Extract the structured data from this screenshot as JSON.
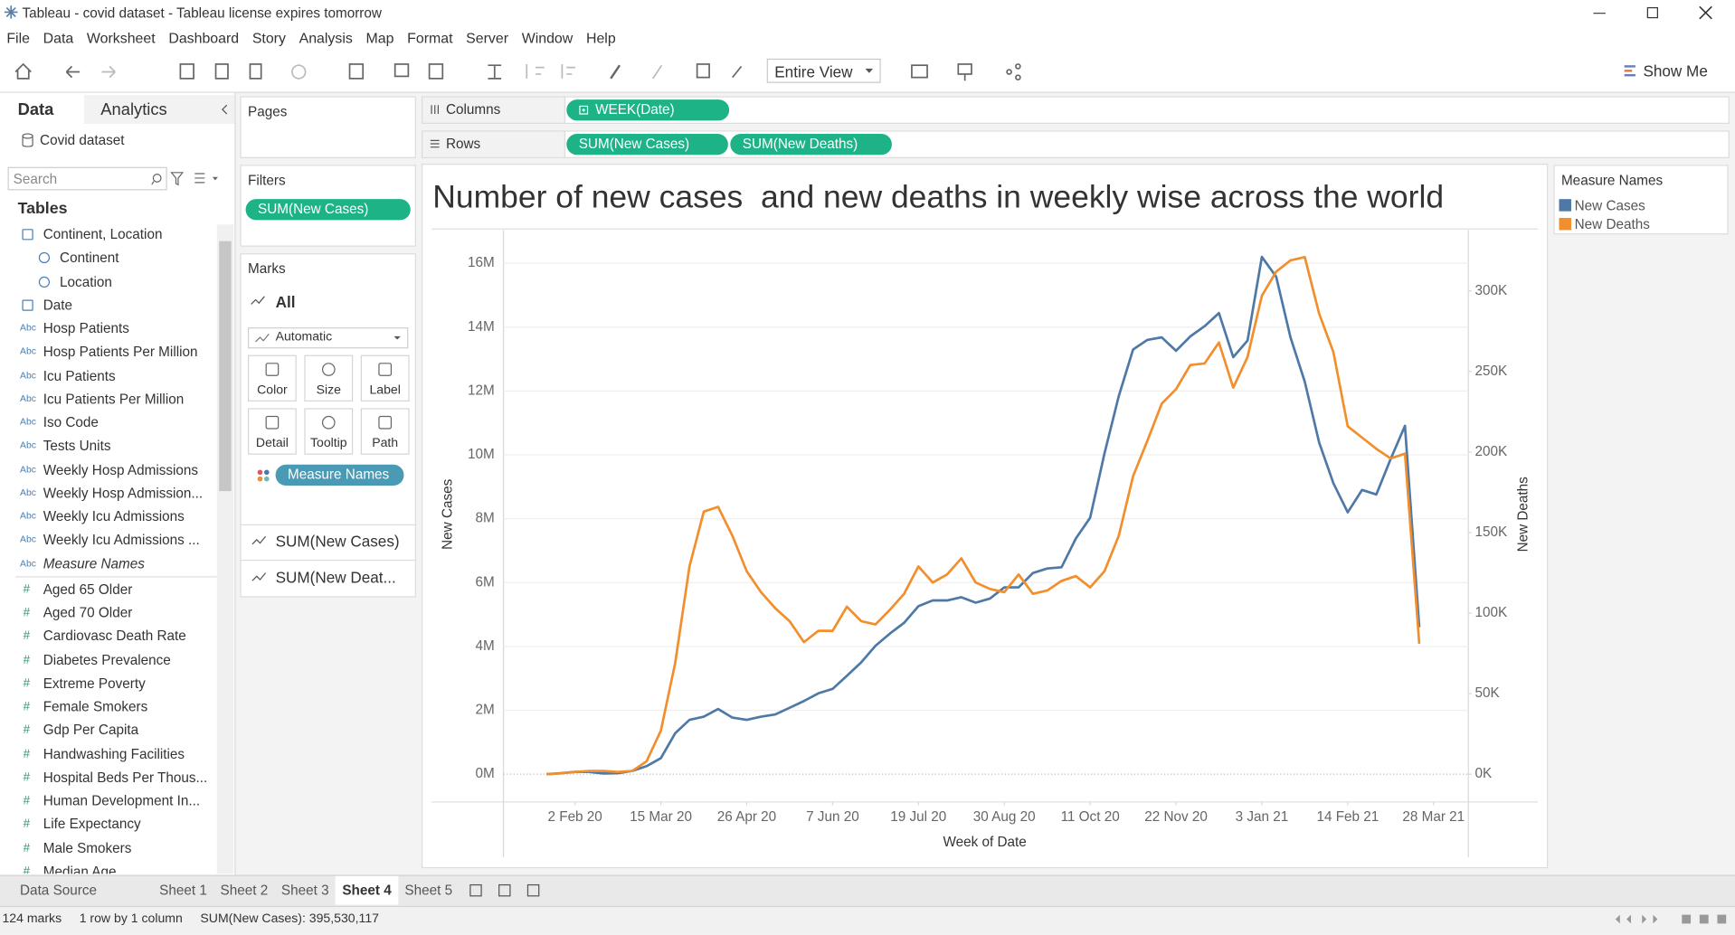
{
  "window": {
    "title": "Tableau - covid dataset - Tableau license expires tomorrow"
  },
  "menu": [
    "File",
    "Data",
    "Worksheet",
    "Dashboard",
    "Story",
    "Analysis",
    "Map",
    "Format",
    "Server",
    "Window",
    "Help"
  ],
  "toolbar": {
    "view": "Entire View",
    "show_me": "Show Me"
  },
  "data_pane": {
    "tabs": [
      "Data",
      "Analytics"
    ],
    "source": "Covid dataset",
    "search_placeholder": "Search",
    "tables_heading": "Tables",
    "fields": [
      {
        "name": "Continent, Location"
      },
      {
        "name": "Continent",
        "level": 1
      },
      {
        "name": "Location",
        "level": 1
      },
      {
        "name": "Date"
      },
      {
        "icon": "Abc",
        "name": "Hosp Patients"
      },
      {
        "icon": "Abc",
        "name": "Hosp Patients Per Million"
      },
      {
        "icon": "Abc",
        "name": "Icu Patients"
      },
      {
        "icon": "Abc",
        "name": "Icu Patients Per Million"
      },
      {
        "icon": "Abc",
        "name": "Iso Code"
      },
      {
        "icon": "Abc",
        "name": "Tests Units"
      },
      {
        "icon": "Abc",
        "name": "Weekly Hosp Admissions"
      },
      {
        "icon": "Abc",
        "name": "Weekly Hosp Admission..."
      },
      {
        "icon": "Abc",
        "name": "Weekly Icu Admissions"
      },
      {
        "icon": "Abc",
        "name": "Weekly Icu Admissions ..."
      },
      {
        "icon": "Abc",
        "name": "Measure Names",
        "italic": true
      },
      {
        "icon": "#",
        "name": "Aged 65 Older"
      },
      {
        "icon": "#",
        "name": "Aged 70 Older"
      },
      {
        "icon": "#",
        "name": "Cardiovasc Death Rate"
      },
      {
        "icon": "#",
        "name": "Diabetes Prevalence"
      },
      {
        "icon": "#",
        "name": "Extreme Poverty"
      },
      {
        "icon": "#",
        "name": "Female Smokers"
      },
      {
        "icon": "#",
        "name": "Gdp Per Capita"
      },
      {
        "icon": "#",
        "name": "Handwashing Facilities"
      },
      {
        "icon": "#",
        "name": "Hospital Beds Per Thous..."
      },
      {
        "icon": "#",
        "name": "Human Development In..."
      },
      {
        "icon": "#",
        "name": "Life Expectancy"
      },
      {
        "icon": "#",
        "name": "Male Smokers"
      },
      {
        "icon": "#",
        "name": "Median Age"
      }
    ]
  },
  "pages": {
    "label": "Pages"
  },
  "filters": {
    "label": "Filters",
    "pills": [
      "SUM(New Cases)"
    ]
  },
  "marks": {
    "label": "Marks",
    "card": "All",
    "mark_type": "Automatic",
    "buttons": [
      "Color",
      "Size",
      "Label",
      "Detail",
      "Tooltip",
      "Path"
    ],
    "color_pill": "Measure Names",
    "measures": [
      "SUM(New Cases)",
      "SUM(New Deat..."
    ]
  },
  "shelves": {
    "columns": {
      "label": "Columns",
      "pills": [
        "WEEK(Date)"
      ]
    },
    "rows": {
      "label": "Rows",
      "pills": [
        "SUM(New Cases)",
        "SUM(New Deaths)"
      ]
    }
  },
  "legend": {
    "title": "Measure Names"
  },
  "sheet_tabs": [
    "Data Source",
    "Sheet 1",
    "Sheet 2",
    "Sheet 3",
    "Sheet 4",
    "Sheet 5"
  ],
  "active_sheet": 4,
  "status": [
    "124 marks",
    "1 row by 1 column",
    "SUM(New Cases): 395,530,117"
  ],
  "chart_data": {
    "type": "line",
    "title": "Number of new cases  and new deaths in weekly wise across the world",
    "x_label": "Week of Date",
    "y_label": "New Cases",
    "y2_label": "New Deaths",
    "x": [
      "2020-01-19",
      "2020-01-26",
      "2020-02-02",
      "2020-02-09",
      "2020-02-16",
      "2020-02-23",
      "2020-03-01",
      "2020-03-08",
      "2020-03-15",
      "2020-03-22",
      "2020-03-29",
      "2020-04-05",
      "2020-04-12",
      "2020-04-19",
      "2020-04-26",
      "2020-05-03",
      "2020-05-10",
      "2020-05-17",
      "2020-05-24",
      "2020-05-31",
      "2020-06-07",
      "2020-06-14",
      "2020-06-21",
      "2020-06-28",
      "2020-07-05",
      "2020-07-12",
      "2020-07-19",
      "2020-07-26",
      "2020-08-02",
      "2020-08-09",
      "2020-08-16",
      "2020-08-23",
      "2020-08-30",
      "2020-09-06",
      "2020-09-13",
      "2020-09-20",
      "2020-09-27",
      "2020-10-04",
      "2020-10-11",
      "2020-10-18",
      "2020-10-25",
      "2020-11-01",
      "2020-11-08",
      "2020-11-15",
      "2020-11-22",
      "2020-11-29",
      "2020-12-06",
      "2020-12-13",
      "2020-12-20",
      "2020-12-27",
      "2021-01-03",
      "2021-01-10",
      "2021-01-17",
      "2021-01-24",
      "2021-01-31",
      "2021-02-07",
      "2021-02-14",
      "2021-02-21",
      "2021-02-28",
      "2021-03-07",
      "2021-03-14",
      "2021-03-21"
    ],
    "series": [
      {
        "name": "New Cases",
        "color": "#4e79a7",
        "values": [
          0,
          30000,
          70000,
          70000,
          20000,
          30000,
          100000,
          250000,
          500000,
          1280000,
          1700000,
          1800000,
          2040000,
          1770000,
          1700000,
          1800000,
          1870000,
          2080000,
          2290000,
          2530000,
          2670000,
          3080000,
          3500000,
          4020000,
          4400000,
          4740000,
          5260000,
          5440000,
          5440000,
          5540000,
          5370000,
          5500000,
          5850000,
          5850000,
          6300000,
          6440000,
          6480000,
          7380000,
          8030000,
          10040000,
          11840000,
          13300000,
          13600000,
          13680000,
          13260000,
          13710000,
          14030000,
          14440000,
          13060000,
          13580000,
          16200000,
          15580000,
          13680000,
          12290000,
          10390000,
          9110000,
          8200000,
          8900000,
          8760000,
          9870000,
          10910000,
          4600000
        ]
      },
      {
        "name": "New Deaths",
        "color": "#f28e2b",
        "axis": "y2",
        "values": [
          0,
          500,
          1400,
          2000,
          2000,
          1400,
          2000,
          8000,
          27000,
          69000,
          129000,
          163000,
          166000,
          148000,
          126000,
          113000,
          103000,
          95000,
          82000,
          89000,
          89000,
          104000,
          95000,
          93000,
          102000,
          112000,
          129000,
          119000,
          124000,
          134000,
          119000,
          115000,
          113000,
          124000,
          112000,
          114000,
          120000,
          123000,
          116000,
          126000,
          148000,
          185000,
          207000,
          230000,
          239000,
          254000,
          255000,
          268000,
          240000,
          259000,
          297000,
          312000,
          319000,
          321000,
          286000,
          262000,
          216000,
          209000,
          202000,
          196000,
          199000,
          81000
        ]
      }
    ],
    "xlim": [
      "2019-12-29",
      "2021-04-14"
    ],
    "xticks": [
      {
        "value": "2020-02-02",
        "label": "2 Feb 20"
      },
      {
        "value": "2020-03-15",
        "label": "15 Mar 20"
      },
      {
        "value": "2020-04-26",
        "label": "26 Apr 20"
      },
      {
        "value": "2020-06-07",
        "label": "7 Jun 20"
      },
      {
        "value": "2020-07-19",
        "label": "19 Jul 20"
      },
      {
        "value": "2020-08-30",
        "label": "30 Aug 20"
      },
      {
        "value": "2020-10-11",
        "label": "11 Oct 20"
      },
      {
        "value": "2020-11-22",
        "label": "22 Nov 20"
      },
      {
        "value": "2021-01-03",
        "label": "3 Jan 21"
      },
      {
        "value": "2021-02-14",
        "label": "14 Feb 21"
      },
      {
        "value": "2021-03-28",
        "label": "28 Mar 21"
      }
    ],
    "ylim": [
      -870000,
      17040000
    ],
    "yticks": [
      {
        "value": 0,
        "label": "0M"
      },
      {
        "value": 2000000,
        "label": "2M"
      },
      {
        "value": 4000000,
        "label": "4M"
      },
      {
        "value": 6000000,
        "label": "6M"
      },
      {
        "value": 8000000,
        "label": "8M"
      },
      {
        "value": 10000000,
        "label": "10M"
      },
      {
        "value": 12000000,
        "label": "12M"
      },
      {
        "value": 14000000,
        "label": "14M"
      },
      {
        "value": 16000000,
        "label": "16M"
      }
    ],
    "y2lim": [
      -17200,
      337800
    ],
    "y2ticks": [
      {
        "value": 0,
        "label": "0K"
      },
      {
        "value": 50000,
        "label": "50K"
      },
      {
        "value": 100000,
        "label": "100K"
      },
      {
        "value": 150000,
        "label": "150K"
      },
      {
        "value": 200000,
        "label": "200K"
      },
      {
        "value": 250000,
        "label": "250K"
      },
      {
        "value": 300000,
        "label": "300K"
      }
    ],
    "grid": true
  }
}
